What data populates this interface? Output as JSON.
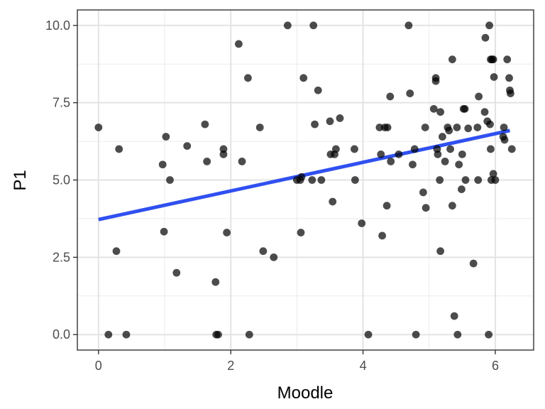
{
  "chart_data": {
    "type": "scatter",
    "xlabel": "Moodle",
    "ylabel": "P1",
    "xlim": [
      -0.32,
      6.58
    ],
    "ylim": [
      -0.5,
      10.5
    ],
    "x_ticks": [
      0,
      2,
      4,
      6
    ],
    "y_ticks": [
      0.0,
      2.5,
      5.0,
      7.5,
      10.0
    ],
    "x_tick_labels": [
      "0",
      "2",
      "4",
      "6"
    ],
    "y_tick_labels": [
      "0.0",
      "2.5",
      "5.0",
      "7.5",
      "10.0"
    ],
    "grid": true,
    "point_color": "#000000",
    "point_opacity": 0.7,
    "trend_line": {
      "color": "#3050f0",
      "x": [
        0.0,
        6.22
      ],
      "y": [
        3.72,
        6.6
      ]
    },
    "points": [
      [
        0.0,
        6.7
      ],
      [
        0.15,
        0.0
      ],
      [
        0.27,
        2.7
      ],
      [
        0.31,
        6.0
      ],
      [
        0.42,
        0.0
      ],
      [
        0.97,
        5.5
      ],
      [
        0.99,
        3.33
      ],
      [
        1.02,
        6.4
      ],
      [
        1.08,
        5.0
      ],
      [
        1.18,
        2.0
      ],
      [
        1.34,
        6.1
      ],
      [
        1.61,
        6.8
      ],
      [
        1.64,
        5.6
      ],
      [
        1.77,
        1.7
      ],
      [
        1.78,
        0.0
      ],
      [
        1.81,
        0.0
      ],
      [
        1.89,
        6.0
      ],
      [
        1.89,
        5.83
      ],
      [
        1.94,
        3.3
      ],
      [
        2.12,
        9.4
      ],
      [
        2.17,
        5.6
      ],
      [
        2.26,
        8.3
      ],
      [
        2.28,
        0.0
      ],
      [
        2.44,
        6.7
      ],
      [
        2.49,
        2.7
      ],
      [
        2.65,
        2.5
      ],
      [
        2.86,
        10.0
      ],
      [
        3.0,
        5.0
      ],
      [
        3.05,
        5.0
      ],
      [
        3.06,
        3.3
      ],
      [
        3.07,
        5.1
      ],
      [
        3.1,
        8.3
      ],
      [
        3.23,
        5.0
      ],
      [
        3.25,
        10.0
      ],
      [
        3.27,
        6.8
      ],
      [
        3.32,
        7.9
      ],
      [
        3.37,
        5.0
      ],
      [
        3.5,
        6.9
      ],
      [
        3.51,
        5.83
      ],
      [
        3.54,
        4.3
      ],
      [
        3.57,
        5.83
      ],
      [
        3.59,
        6.0
      ],
      [
        3.65,
        7.0
      ],
      [
        3.87,
        6.0
      ],
      [
        3.88,
        5.0
      ],
      [
        3.98,
        3.6
      ],
      [
        4.08,
        0.0
      ],
      [
        4.25,
        6.7
      ],
      [
        4.27,
        5.83
      ],
      [
        4.29,
        3.2
      ],
      [
        4.33,
        6.7
      ],
      [
        4.36,
        4.17
      ],
      [
        4.37,
        6.7
      ],
      [
        4.41,
        7.7
      ],
      [
        4.42,
        5.6
      ],
      [
        4.54,
        5.83
      ],
      [
        4.69,
        10.0
      ],
      [
        4.71,
        7.8
      ],
      [
        4.75,
        5.5
      ],
      [
        4.78,
        6.0
      ],
      [
        4.8,
        0.0
      ],
      [
        4.91,
        4.6
      ],
      [
        4.94,
        6.7
      ],
      [
        4.95,
        4.1
      ],
      [
        5.07,
        7.3
      ],
      [
        5.1,
        8.3
      ],
      [
        5.1,
        8.2
      ],
      [
        5.12,
        6.0
      ],
      [
        5.13,
        5.83
      ],
      [
        5.16,
        5.0
      ],
      [
        5.17,
        7.2
      ],
      [
        5.17,
        2.7
      ],
      [
        5.2,
        6.4
      ],
      [
        5.24,
        5.6
      ],
      [
        5.28,
        6.7
      ],
      [
        5.3,
        6.6
      ],
      [
        5.32,
        6.0
      ],
      [
        5.35,
        4.17
      ],
      [
        5.35,
        8.9
      ],
      [
        5.38,
        0.6
      ],
      [
        5.42,
        6.7
      ],
      [
        5.43,
        0.0
      ],
      [
        5.45,
        5.5
      ],
      [
        5.49,
        4.7
      ],
      [
        5.5,
        5.83
      ],
      [
        5.52,
        7.3
      ],
      [
        5.54,
        7.3
      ],
      [
        5.55,
        5.0
      ],
      [
        5.59,
        6.67
      ],
      [
        5.67,
        2.3
      ],
      [
        5.73,
        6.7
      ],
      [
        5.74,
        5.0
      ],
      [
        5.75,
        7.7
      ],
      [
        5.84,
        7.2
      ],
      [
        5.85,
        9.6
      ],
      [
        5.88,
        6.9
      ],
      [
        5.9,
        0.0
      ],
      [
        5.91,
        10.0
      ],
      [
        5.92,
        6.8
      ],
      [
        5.93,
        8.9
      ],
      [
        5.93,
        6.0
      ],
      [
        5.94,
        5.0
      ],
      [
        5.95,
        8.9
      ],
      [
        5.97,
        8.9
      ],
      [
        5.97,
        5.2
      ],
      [
        5.98,
        8.33
      ],
      [
        6.0,
        5.0
      ],
      [
        6.12,
        6.4
      ],
      [
        6.13,
        6.7
      ],
      [
        6.14,
        6.3
      ],
      [
        6.18,
        8.9
      ],
      [
        6.21,
        8.3
      ],
      [
        6.22,
        7.9
      ],
      [
        6.23,
        7.8
      ],
      [
        6.25,
        6.0
      ]
    ]
  }
}
